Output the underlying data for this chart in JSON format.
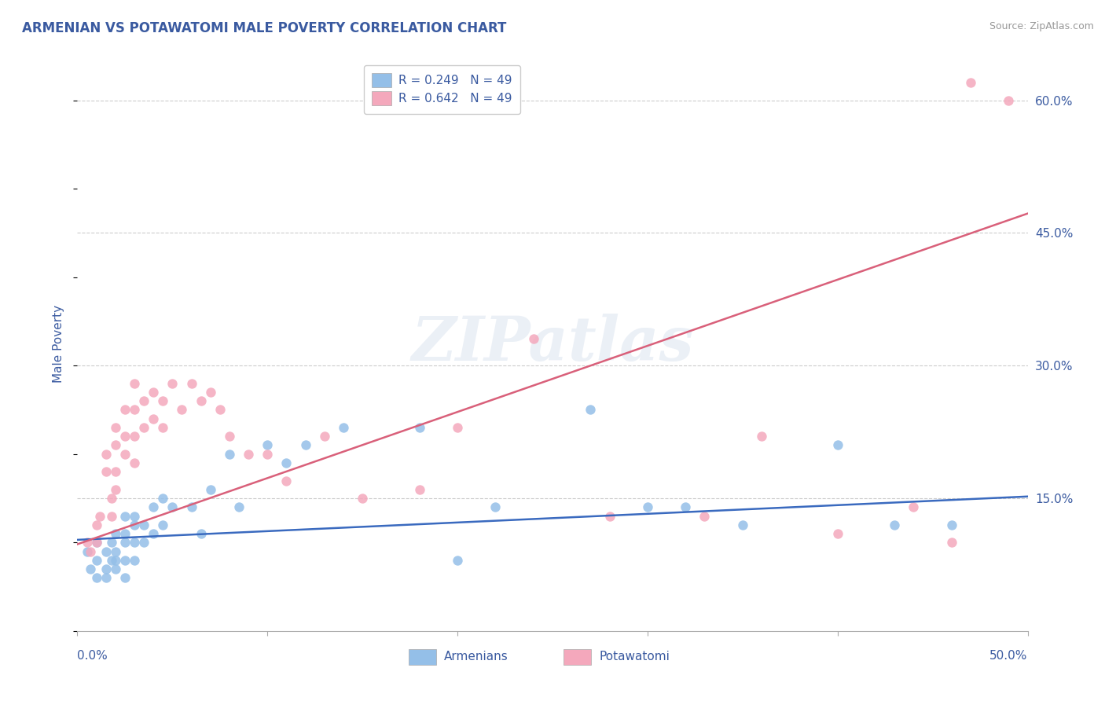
{
  "title": "ARMENIAN VS POTAWATOMI MALE POVERTY CORRELATION CHART",
  "source": "Source: ZipAtlas.com",
  "ylabel": "Male Poverty",
  "xlim": [
    0.0,
    0.5
  ],
  "ylim": [
    0.0,
    0.65
  ],
  "xtick_positions": [
    0.0,
    0.1,
    0.2,
    0.3,
    0.4,
    0.5
  ],
  "ytick_positions_right": [
    0.15,
    0.3,
    0.45,
    0.6
  ],
  "ytick_labels_right": [
    "15.0%",
    "30.0%",
    "45.0%",
    "60.0%"
  ],
  "armenian_color": "#94bfe8",
  "potawatomi_color": "#f4a8bc",
  "armenian_line_color": "#3a6abf",
  "potawatomi_line_color": "#d9607a",
  "legend_R_armenian": "R = 0.249",
  "legend_N_armenian": "N = 49",
  "legend_R_potawatomi": "R = 0.642",
  "legend_N_potawatomi": "N = 49",
  "background_color": "#ffffff",
  "grid_color": "#cccccc",
  "title_color": "#3a5aa0",
  "axis_label_color": "#3a5aa0",
  "tick_label_color": "#3a5aa0",
  "watermark_text": "ZIPatlas",
  "arm_line_x0": 0.0,
  "arm_line_y0": 0.103,
  "arm_line_x1": 0.5,
  "arm_line_y1": 0.152,
  "pot_line_x0": 0.0,
  "pot_line_y0": 0.098,
  "pot_line_x1": 0.5,
  "pot_line_y1": 0.472,
  "armenian_x": [
    0.005,
    0.007,
    0.01,
    0.01,
    0.01,
    0.015,
    0.015,
    0.015,
    0.018,
    0.018,
    0.02,
    0.02,
    0.02,
    0.02,
    0.025,
    0.025,
    0.025,
    0.025,
    0.025,
    0.03,
    0.03,
    0.03,
    0.03,
    0.035,
    0.035,
    0.04,
    0.04,
    0.045,
    0.045,
    0.05,
    0.06,
    0.065,
    0.07,
    0.08,
    0.085,
    0.1,
    0.11,
    0.12,
    0.14,
    0.18,
    0.2,
    0.22,
    0.27,
    0.3,
    0.32,
    0.35,
    0.4,
    0.43,
    0.46
  ],
  "armenian_y": [
    0.09,
    0.07,
    0.08,
    0.1,
    0.06,
    0.09,
    0.07,
    0.06,
    0.1,
    0.08,
    0.11,
    0.09,
    0.08,
    0.07,
    0.13,
    0.11,
    0.1,
    0.08,
    0.06,
    0.13,
    0.12,
    0.1,
    0.08,
    0.12,
    0.1,
    0.14,
    0.11,
    0.15,
    0.12,
    0.14,
    0.14,
    0.11,
    0.16,
    0.2,
    0.14,
    0.21,
    0.19,
    0.21,
    0.23,
    0.23,
    0.08,
    0.14,
    0.25,
    0.14,
    0.14,
    0.12,
    0.21,
    0.12,
    0.12
  ],
  "potawatomi_x": [
    0.005,
    0.007,
    0.01,
    0.01,
    0.012,
    0.015,
    0.015,
    0.018,
    0.018,
    0.02,
    0.02,
    0.02,
    0.02,
    0.025,
    0.025,
    0.025,
    0.03,
    0.03,
    0.03,
    0.03,
    0.035,
    0.035,
    0.04,
    0.04,
    0.045,
    0.045,
    0.05,
    0.055,
    0.06,
    0.065,
    0.07,
    0.075,
    0.08,
    0.09,
    0.1,
    0.11,
    0.13,
    0.15,
    0.18,
    0.2,
    0.24,
    0.28,
    0.33,
    0.36,
    0.4,
    0.44,
    0.46,
    0.47,
    0.49
  ],
  "potawatomi_y": [
    0.1,
    0.09,
    0.12,
    0.1,
    0.13,
    0.2,
    0.18,
    0.15,
    0.13,
    0.23,
    0.21,
    0.18,
    0.16,
    0.25,
    0.22,
    0.2,
    0.28,
    0.25,
    0.22,
    0.19,
    0.26,
    0.23,
    0.27,
    0.24,
    0.26,
    0.23,
    0.28,
    0.25,
    0.28,
    0.26,
    0.27,
    0.25,
    0.22,
    0.2,
    0.2,
    0.17,
    0.22,
    0.15,
    0.16,
    0.23,
    0.33,
    0.13,
    0.13,
    0.22,
    0.11,
    0.14,
    0.1,
    0.62,
    0.6
  ]
}
